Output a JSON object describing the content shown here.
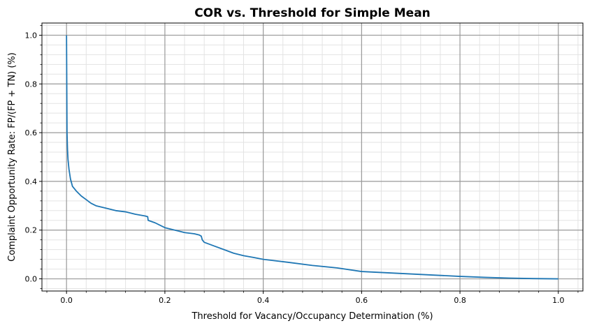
{
  "chart_data": {
    "type": "line",
    "title": "COR vs. Threshold for Simple Mean",
    "xlabel": "Threshold for Vacancy/Occupancy Determination (%)",
    "ylabel": "Complaint Opportunity Rate: FP/(FP + TN) (%)",
    "xlim": [
      -0.05,
      1.05
    ],
    "ylim": [
      -0.05,
      1.05
    ],
    "x_ticks": [
      0.0,
      0.2,
      0.4,
      0.6,
      0.8,
      1.0
    ],
    "x_tick_labels": [
      "0.0",
      "0.2",
      "0.4",
      "0.6",
      "0.8",
      "1.0"
    ],
    "y_ticks": [
      0.0,
      0.2,
      0.4,
      0.6,
      0.8,
      1.0
    ],
    "y_tick_labels": [
      "0.0",
      "0.2",
      "0.4",
      "0.6",
      "0.8",
      "1.0"
    ],
    "grid": "major and minor",
    "color": "#1f77b4",
    "series": [
      {
        "x": [
          0,
          0.0005,
          0.001,
          0.002,
          0.003,
          0.005,
          0.008,
          0.012,
          0.02,
          0.03,
          0.04,
          0.05,
          0.06,
          0.08,
          0.1,
          0.12,
          0.14,
          0.16,
          0.165,
          0.166,
          0.18,
          0.2,
          0.22,
          0.24,
          0.26,
          0.27,
          0.274,
          0.276,
          0.28,
          0.3,
          0.32,
          0.34,
          0.36,
          0.38,
          0.4,
          0.45,
          0.5,
          0.55,
          0.6,
          0.65,
          0.7,
          0.75,
          0.8,
          0.85,
          0.9,
          0.95,
          1.0
        ],
        "y": [
          1.0,
          0.8,
          0.6,
          0.53,
          0.49,
          0.45,
          0.41,
          0.38,
          0.36,
          0.34,
          0.325,
          0.31,
          0.3,
          0.29,
          0.28,
          0.275,
          0.265,
          0.258,
          0.255,
          0.24,
          0.23,
          0.21,
          0.2,
          0.19,
          0.185,
          0.18,
          0.175,
          0.16,
          0.15,
          0.135,
          0.12,
          0.105,
          0.095,
          0.088,
          0.08,
          0.068,
          0.055,
          0.045,
          0.03,
          0.025,
          0.02,
          0.015,
          0.01,
          0.006,
          0.003,
          0.001,
          0.0
        ]
      }
    ]
  }
}
